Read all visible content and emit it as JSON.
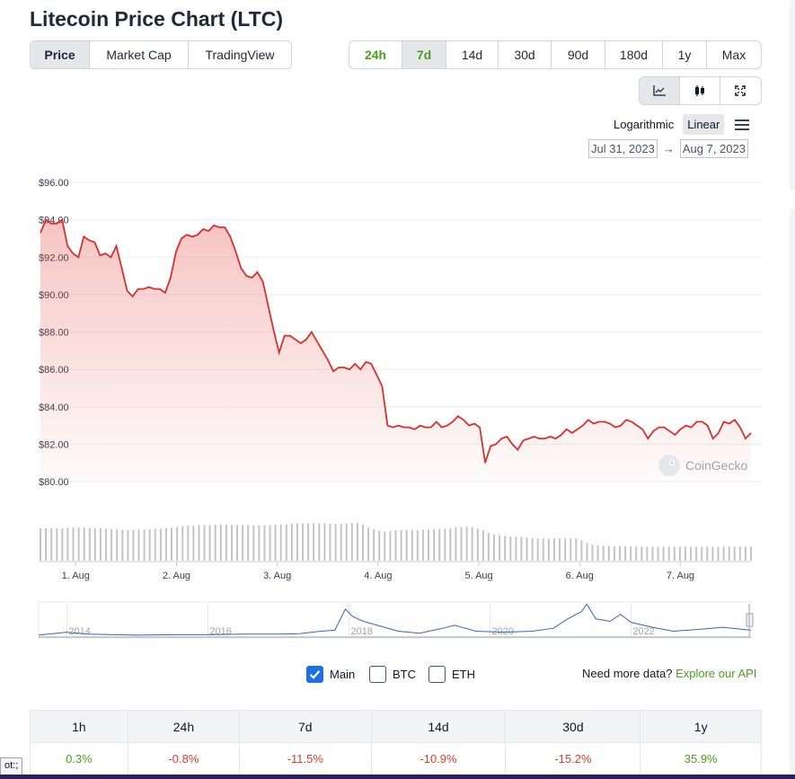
{
  "title": "Litecoin Price Chart (LTC)",
  "tabs": [
    {
      "label": "Price",
      "active": true
    },
    {
      "label": "Market Cap",
      "active": false
    },
    {
      "label": "TradingView",
      "active": false
    }
  ],
  "ranges": [
    {
      "label": "24h",
      "style": "green"
    },
    {
      "label": "7d",
      "style": "selected"
    },
    {
      "label": "14d",
      "style": ""
    },
    {
      "label": "30d",
      "style": ""
    },
    {
      "label": "90d",
      "style": ""
    },
    {
      "label": "180d",
      "style": ""
    },
    {
      "label": "1y",
      "style": ""
    },
    {
      "label": "Max",
      "style": ""
    }
  ],
  "views": [
    "line-chart-icon",
    "candlestick-icon",
    "fullscreen-icon"
  ],
  "scale": {
    "log_label": "Logarithmic",
    "linear_label": "Linear",
    "selected": "Linear"
  },
  "date_range": {
    "from": "Jul 31, 2023",
    "arrow": "→",
    "to": "Aug 7, 2023"
  },
  "watermark": "CoinGecko",
  "colors": {
    "line": "#d9302c",
    "accent_green": "#4b9e1e",
    "volume": "#c4c4c4",
    "navigator_line": "#3b63b8"
  },
  "chart_data": {
    "type": "area",
    "title": "",
    "ylim": [
      80,
      96
    ],
    "y_ticks": [
      "$96.00",
      "$94.00",
      "$92.00",
      "$90.00",
      "$88.00",
      "$86.00",
      "$84.00",
      "$82.00",
      "$80.00"
    ],
    "y_tick_values": [
      96,
      94,
      92,
      90,
      88,
      86,
      84,
      82,
      80
    ],
    "x_ticks": [
      "1. Aug",
      "2. Aug",
      "3. Aug",
      "4. Aug",
      "5. Aug",
      "6. Aug",
      "7. Aug"
    ],
    "x_range": [
      0,
      7.05
    ],
    "x_tick_positions": [
      0.35,
      1.35,
      2.35,
      3.35,
      4.35,
      5.35,
      6.35
    ],
    "series": [
      {
        "values": [
          93.3,
          94.0,
          93.8,
          93.8,
          94.0,
          92.6,
          92.2,
          92.0,
          93.1,
          92.9,
          92.8,
          92.1,
          92.2,
          92.0,
          92.6,
          91.4,
          90.2,
          89.9,
          90.3,
          90.3,
          90.4,
          90.3,
          90.3,
          90.1,
          90.9,
          92.3,
          93.0,
          93.2,
          93.1,
          93.2,
          93.5,
          93.4,
          93.7,
          93.6,
          93.6,
          93.1,
          92.3,
          91.4,
          91.0,
          90.9,
          91.2,
          90.7,
          89.4,
          88.1,
          86.9,
          87.8,
          87.8,
          87.6,
          87.4,
          87.6,
          88.0,
          87.5,
          87.0,
          86.5,
          85.9,
          86.1,
          86.1,
          86.0,
          86.3,
          86.0,
          86.4,
          86.3,
          85.7,
          85.1,
          83.0,
          82.9,
          83.0,
          82.9,
          82.9,
          82.8,
          83.0,
          82.9,
          82.9,
          83.2,
          82.9,
          83.0,
          83.2,
          83.5,
          83.3,
          83.0,
          83.1,
          82.9,
          81.0,
          81.9,
          82.0,
          82.3,
          82.4,
          82.0,
          81.7,
          82.2,
          82.3,
          82.4,
          82.3,
          82.3,
          82.4,
          82.3,
          82.5,
          82.8,
          82.6,
          82.8,
          83.0,
          83.3,
          83.1,
          83.2,
          83.2,
          83.1,
          82.9,
          83.0,
          83.3,
          83.2,
          83.0,
          82.8,
          82.3,
          82.7,
          82.9,
          82.9,
          82.7,
          82.5,
          82.8,
          83.0,
          82.9,
          83.2,
          83.2,
          83.0,
          82.3,
          82.6,
          83.2,
          83.1,
          83.3,
          82.9,
          82.3,
          82.6
        ]
      }
    ],
    "volume": [
      1.0,
      1.0,
      1.0,
      1.0,
      1.0,
      1.02,
      1.02,
      1.03,
      1.03,
      1.02,
      1.01,
      1.01,
      0.99,
      0.98,
      0.97,
      0.95,
      0.95,
      0.95,
      0.96,
      0.97,
      0.97,
      0.98,
      0.99,
      1.01,
      1.02,
      1.04,
      1.06,
      1.08,
      1.09,
      1.1,
      1.1,
      1.1,
      1.11,
      1.12,
      1.11,
      1.1,
      1.1,
      1.1,
      1.1,
      1.09,
      1.09,
      1.09,
      1.1,
      1.11,
      1.12,
      1.12,
      1.14,
      1.15,
      1.15,
      1.16,
      1.16,
      1.15,
      1.15,
      1.14,
      1.14,
      1.14,
      1.15,
      1.17,
      1.17,
      1.12,
      1.03,
      0.97,
      0.92,
      0.9,
      0.92,
      0.94,
      0.95,
      0.95,
      0.95,
      0.95,
      0.96,
      0.96,
      0.97,
      0.98,
      0.99,
      1.01,
      1.03,
      1.04,
      1.05,
      1.04,
      0.99,
      0.94,
      0.86,
      0.82,
      0.8,
      0.77,
      0.75,
      0.74,
      0.73,
      0.72,
      0.7,
      0.69,
      0.69,
      0.68,
      0.69,
      0.69,
      0.69,
      0.69,
      0.69,
      0.63,
      0.55,
      0.49,
      0.47,
      0.46,
      0.46,
      0.45,
      0.45,
      0.44,
      0.44,
      0.43,
      0.43,
      0.43,
      0.43,
      0.43,
      0.43,
      0.43,
      0.43,
      0.43,
      0.43,
      0.43,
      0.43,
      0.43,
      0.43,
      0.43,
      0.43,
      0.43,
      0.43,
      0.43,
      0.43,
      0.43,
      0.43
    ],
    "navigator": {
      "x_ticks": [
        "2014",
        "2016",
        "2018",
        "2020",
        "2022"
      ],
      "x_range": [
        2013.6,
        2023.7
      ],
      "x_tick_values": [
        2014,
        2016,
        2018,
        2020,
        2022
      ],
      "series_x": [
        2013.6,
        2014.0,
        2014.3,
        2014.7,
        2015.0,
        2015.5,
        2016.0,
        2016.5,
        2017.0,
        2017.3,
        2017.6,
        2017.8,
        2017.95,
        2018.05,
        2018.2,
        2018.4,
        2018.7,
        2019.0,
        2019.3,
        2019.5,
        2019.8,
        2020.2,
        2020.6,
        2020.9,
        2021.1,
        2021.3,
        2021.37,
        2021.5,
        2021.7,
        2021.85,
        2022.0,
        2022.3,
        2022.6,
        2023.0,
        2023.3,
        2023.7
      ],
      "series_y": [
        2,
        8,
        4,
        3,
        2,
        3,
        3,
        4,
        4,
        5,
        10,
        12,
        55,
        40,
        30,
        22,
        10,
        6,
        15,
        22,
        10,
        8,
        10,
        16,
        35,
        50,
        65,
        35,
        30,
        44,
        28,
        18,
        10,
        14,
        18,
        12
      ]
    }
  },
  "checkboxes": [
    {
      "label": "Main",
      "checked": true
    },
    {
      "label": "BTC",
      "checked": false
    },
    {
      "label": "ETH",
      "checked": false
    }
  ],
  "more_data": {
    "text": "Need more data?",
    "link": "Explore our API"
  },
  "performance": {
    "headers": [
      "1h",
      "24h",
      "7d",
      "14d",
      "30d",
      "1y"
    ],
    "values": [
      "0.3%",
      "-0.8%",
      "-11.5%",
      "-10.9%",
      "-15.2%",
      "35.9%"
    ],
    "signs": [
      "pos",
      "neg",
      "neg",
      "neg",
      "neg",
      "pos"
    ]
  },
  "tooltip": "ot:;"
}
